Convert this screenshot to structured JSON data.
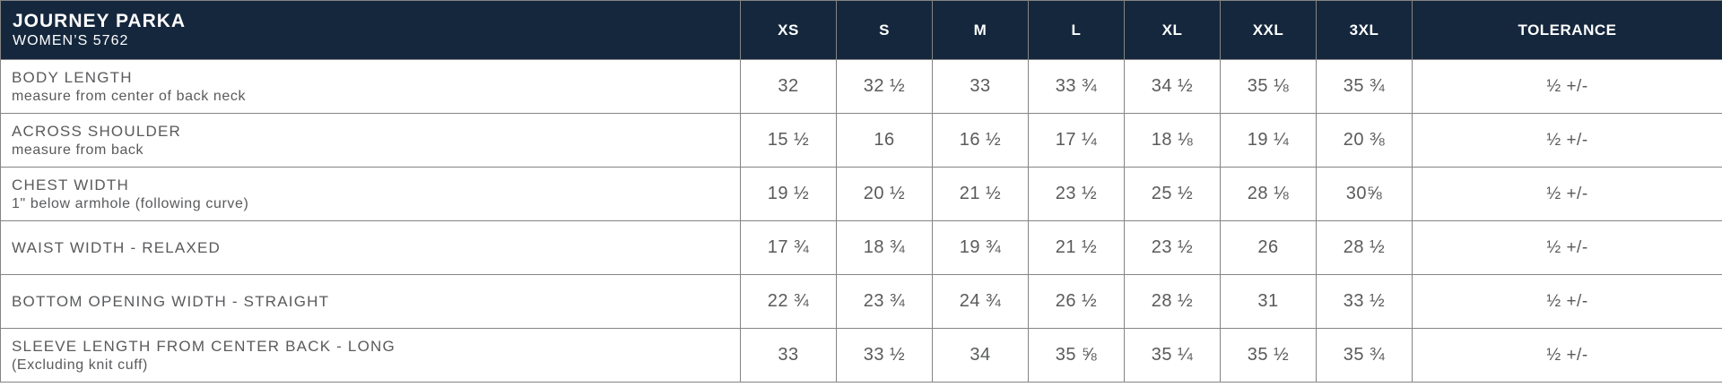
{
  "product": {
    "name": "JOURNEY PARKA",
    "style": "WOMEN’S 5762"
  },
  "columns": {
    "sizes": [
      "XS",
      "S",
      "M",
      "L",
      "XL",
      "XXL",
      "3XL"
    ],
    "tolerance": "TOLERANCE"
  },
  "rows": [
    {
      "label": "BODY LENGTH",
      "sublabel": "measure from center of back neck",
      "values": [
        "32",
        "32 ½",
        "33",
        "33 ¾",
        "34 ½",
        "35 ⅛",
        "35 ¾"
      ],
      "tolerance": "½ +/-"
    },
    {
      "label": "ACROSS SHOULDER",
      "sublabel": "measure from back",
      "values": [
        "15 ½",
        "16",
        "16 ½",
        "17 ¼",
        "18 ⅛",
        "19 ¼",
        "20 ⅜"
      ],
      "tolerance": "½ +/-"
    },
    {
      "label": "CHEST WIDTH",
      "sublabel": "1\" below armhole (following curve)",
      "values": [
        "19 ½",
        "20 ½",
        "21 ½",
        "23 ½",
        "25 ½",
        "28 ⅛",
        "30⅝"
      ],
      "tolerance": "½ +/-"
    },
    {
      "label": "WAIST WIDTH - RELAXED",
      "sublabel": "",
      "values": [
        "17 ¾",
        "18 ¾",
        "19 ¾",
        "21 ½",
        "23 ½",
        "26",
        "28 ½"
      ],
      "tolerance": "½ +/-"
    },
    {
      "label": "BOTTOM OPENING WIDTH - STRAIGHT",
      "sublabel": "",
      "values": [
        "22 ¾",
        "23 ¾",
        "24 ¾",
        "26 ½",
        "28 ½",
        "31",
        "33 ½"
      ],
      "tolerance": "½ +/-"
    },
    {
      "label": "SLEEVE LENGTH FROM CENTER BACK - LONG",
      "sublabel": "(Excluding knit cuff)",
      "values": [
        "33",
        "33 ½",
        "34",
        "35 ⅝",
        "35 ¼",
        "35 ½",
        "35 ¾"
      ],
      "tolerance": "½ +/-"
    }
  ],
  "colors": {
    "header_bg": "#14273d",
    "header_text": "#ffffff",
    "body_text": "#595a5c",
    "border": "#848484"
  }
}
